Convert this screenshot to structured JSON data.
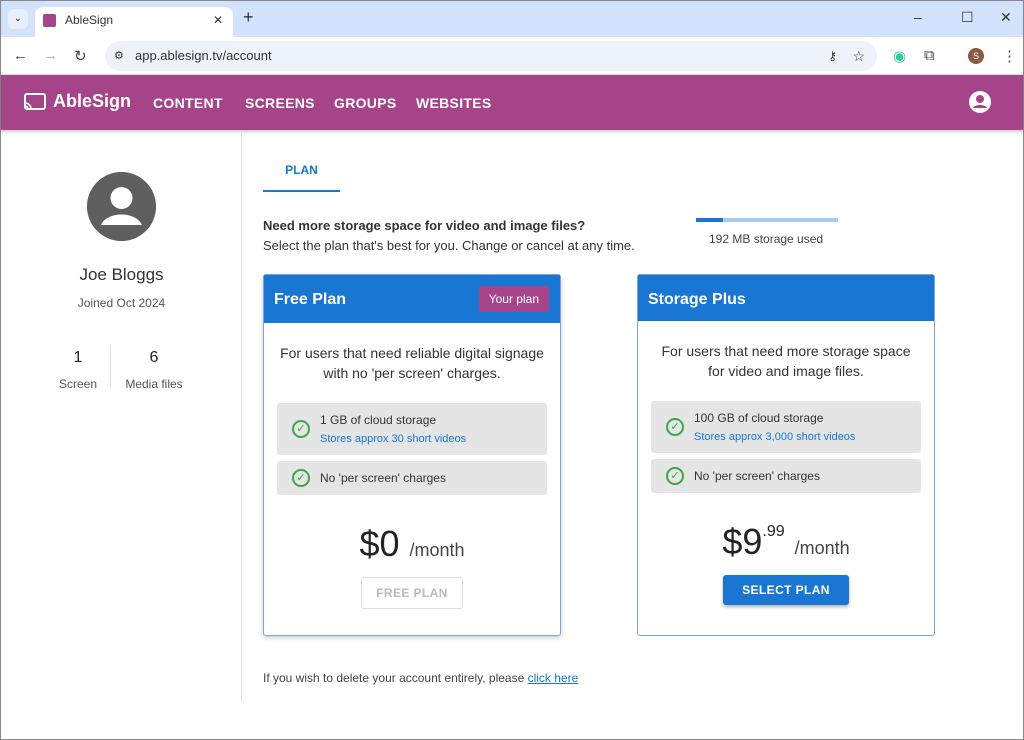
{
  "browser": {
    "tab_title": "AbleSign",
    "url": "app.ablesign.tv/account",
    "profile_initial": "S"
  },
  "app": {
    "brand": "AbleSign",
    "nav": [
      "CONTENT",
      "SCREENS",
      "GROUPS",
      "WEBSITES"
    ],
    "brand_color": "#a6448a",
    "accent": "#1976d2"
  },
  "profile": {
    "name": "Joe Bloggs",
    "joined": "Joined Oct 2024",
    "stats": [
      {
        "value": "1",
        "label": "Screen"
      },
      {
        "value": "6",
        "label": "Media files"
      }
    ]
  },
  "tabs": [
    "PLAN"
  ],
  "intro": {
    "headline": "Need more storage space for video and image files?",
    "subline": "Select the plan that's best for you. Change or cancel at any time."
  },
  "storage": {
    "label": "192 MB storage used",
    "fraction_used": 0.19
  },
  "plans": [
    {
      "name": "Free Plan",
      "badge": "Your plan",
      "description": "For users that need reliable digital signage with no 'per screen' charges.",
      "features": [
        {
          "title": "1 GB of cloud storage",
          "sub": "Stores approx 30 short videos"
        },
        {
          "title": "No 'per screen' charges"
        }
      ],
      "price": "$0",
      "cents": "",
      "per": "/month",
      "button": "FREE PLAN",
      "button_enabled": false
    },
    {
      "name": "Storage Plus",
      "description": "For users that need more storage space for video and image files.",
      "features": [
        {
          "title": "100 GB of cloud storage",
          "sub": "Stores approx 3,000 short videos"
        },
        {
          "title": "No 'per screen' charges"
        }
      ],
      "price": "$9",
      "cents": ".99",
      "per": "/month",
      "button": "SELECT PLAN",
      "button_enabled": true
    }
  ],
  "footer": {
    "text": "If you wish to delete your account entirely, please ",
    "link": "click here"
  }
}
